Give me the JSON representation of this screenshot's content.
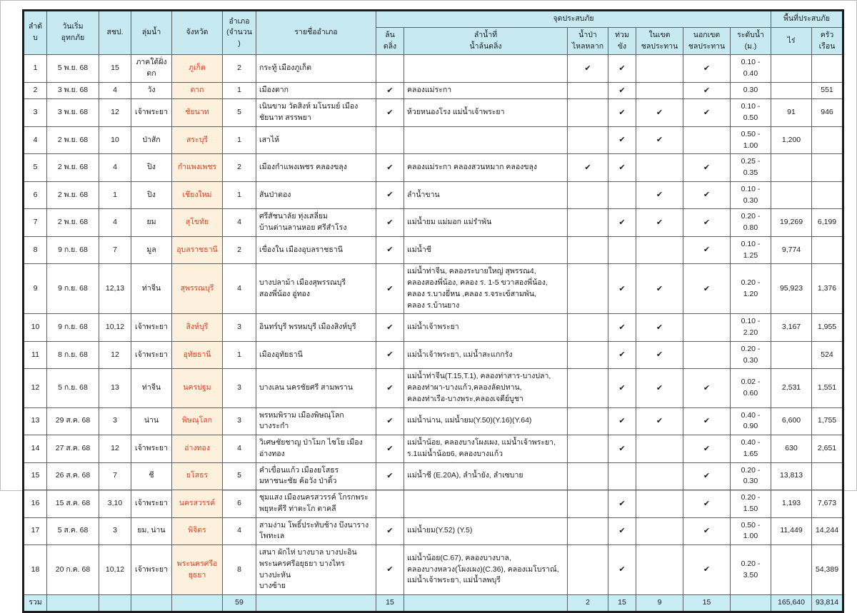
{
  "colors": {
    "header_bg": "#c7e9f2",
    "total_row_bg": "#c9edf5",
    "province_cell_bg": "#fdf0dc",
    "province_text": "#e03c20",
    "border": "#5a5f63"
  },
  "table": {
    "column_keys": [
      "no",
      "date",
      "rid",
      "basin",
      "province",
      "amphoe_count",
      "amphoe_names",
      "overflow",
      "rivers",
      "flash_flood",
      "stagnant",
      "in_irrigation",
      "out_irrigation",
      "water_level",
      "rai",
      "households"
    ],
    "headers": {
      "no": "ลำดับ",
      "date": "วันเริ่ม\nอุทกภัย",
      "rid": "สชป.",
      "basin": "ลุ่มน้ำ",
      "province": "จังหวัด",
      "amphoe_count": "อำเภอ\n(จำนวน)",
      "amphoe_names": "รายชื่ออำเภอ",
      "flood_point_group": "จุดประสบภัย",
      "overflow": "ล้นตลิ่ง",
      "rivers": "ลำน้ำที่\nน้ำล้นตลิ่ง",
      "flash_flood": "น้ำป่า\nไหลหลาก",
      "stagnant": "ท่วมขัง",
      "in_irrigation": "ในเขต\nชลประทาน",
      "out_irrigation": "นอกเขต\nชลประทาน",
      "water_level": "ระดับน้ำ\n(ม.)",
      "area_group": "พื้นที่ประสบภัย",
      "rai": "ไร่",
      "households": "ครัวเรือน"
    },
    "rows": [
      {
        "no": "1",
        "date": "5 พ.ย. 68",
        "rid": "15",
        "basin": "ภาคใต้ฝั่งตก",
        "province": "ภูเก็ต",
        "amphoe_count": "2",
        "amphoe_names": [
          "กระทู้ เมืองภูเก็ต"
        ],
        "overflow": "",
        "rivers": [],
        "flash_flood": "✔",
        "stagnant": "✔",
        "in_irrigation": "",
        "out_irrigation": "✔",
        "water_level": "0.10 - 0.40",
        "rai": "",
        "households": ""
      },
      {
        "no": "2",
        "date": "3 พ.ย. 68",
        "rid": "4",
        "basin": "วัง",
        "province": "ตาก",
        "amphoe_count": "1",
        "amphoe_names": [
          "เมืองตาก"
        ],
        "overflow": "✔",
        "rivers": [
          "คลองแม่ระกา"
        ],
        "flash_flood": "",
        "stagnant": "✔",
        "in_irrigation": "",
        "out_irrigation": "✔",
        "water_level": "0.30",
        "rai": "",
        "households": "551"
      },
      {
        "no": "3",
        "date": "3 พ.ย. 68",
        "rid": "12",
        "basin": "เจ้าพระยา",
        "province": "ชัยนาท",
        "amphoe_count": "5",
        "amphoe_names": [
          "เนินขาม วัดสิงห์ มโนรมย์ เมืองชัยนาท สรรพยา"
        ],
        "overflow": "✔",
        "rivers": [
          "ห้วยหนองโรง แม่น้ำเจ้าพระยา"
        ],
        "flash_flood": "",
        "stagnant": "✔",
        "in_irrigation": "✔",
        "out_irrigation": "✔",
        "water_level": "0.10 - 0.50",
        "rai": "91",
        "households": "946"
      },
      {
        "no": "4",
        "date": "2 พ.ย. 68",
        "rid": "10",
        "basin": "ป่าสัก",
        "province": "สระบุรี",
        "amphoe_count": "1",
        "amphoe_names": [
          "เสาไห้"
        ],
        "overflow": "",
        "rivers": [],
        "flash_flood": "",
        "stagnant": "✔",
        "in_irrigation": "✔",
        "out_irrigation": "",
        "water_level": "0.50 - 1.00",
        "rai": "1,200",
        "households": ""
      },
      {
        "no": "5",
        "date": "2 พ.ย. 68",
        "rid": "4",
        "basin": "ปิง",
        "province": "กำแพงเพชร",
        "amphoe_count": "2",
        "amphoe_names": [
          "เมืองกำแพงเพชร คลองขลุง"
        ],
        "overflow": "✔",
        "rivers": [
          "คลองแม่ระกา คลองสวนหมาก คลองขลุง"
        ],
        "flash_flood": "✔",
        "stagnant": "✔",
        "in_irrigation": "",
        "out_irrigation": "✔",
        "water_level": "0.25 - 0.35",
        "rai": "",
        "households": ""
      },
      {
        "no": "6",
        "date": "2 พ.ย. 68",
        "rid": "1",
        "basin": "ปิง",
        "province": "เชียงใหม่",
        "amphoe_count": "1",
        "amphoe_names": [
          "สันป่าตอง"
        ],
        "overflow": "✔",
        "rivers": [
          "ลำน้ำขาน"
        ],
        "flash_flood": "",
        "stagnant": "",
        "in_irrigation": "✔",
        "out_irrigation": "✔",
        "water_level": "0.10 - 0.30",
        "rai": "",
        "households": ""
      },
      {
        "no": "7",
        "date": "2 พ.ย. 68",
        "rid": "4",
        "basin": "ยม",
        "province": "สุโขทัย",
        "amphoe_count": "4",
        "amphoe_names": [
          "ศรีสัชนาลัย ทุ่งเสลี่ยม",
          "บ้านด่านลานหอย ศรีสำโรง"
        ],
        "overflow": "✔",
        "rivers": [
          "แม่น้ำยม แม่มอก แม่รำพัน"
        ],
        "flash_flood": "",
        "stagnant": "✔",
        "in_irrigation": "✔",
        "out_irrigation": "✔",
        "water_level": "0.20 - 0.80",
        "rai": "19,269",
        "households": "6,199"
      },
      {
        "no": "8",
        "date": "9 ก.ย. 68",
        "rid": "7",
        "basin": "มูล",
        "province": "อุบลราชธานี",
        "amphoe_count": "2",
        "amphoe_names": [
          "เขื่องใน เมืองอุบลราชธานี"
        ],
        "overflow": "✔",
        "rivers": [
          "แม่น้ำชี"
        ],
        "flash_flood": "",
        "stagnant": "",
        "in_irrigation": "",
        "out_irrigation": "✔",
        "water_level": "0.10 - 1.25",
        "rai": "9,774",
        "households": ""
      },
      {
        "no": "9",
        "date": "9 ก.ย. 68",
        "rid": "12,13",
        "basin": "ท่าจีน",
        "province": "สุพรรณบุรี",
        "amphoe_count": "4",
        "amphoe_names": [
          "บางปลาม้า เมืองสุพรรณบุรี",
          "สองพี่น้อง อู่ทอง"
        ],
        "overflow": "✔",
        "rivers": [
          "แม่น้ำท่าจีน, คลองระบายใหญ่ สุพรรณ4,",
          "คลองสองพี่น้อง, คลอง ร. 1-5 ขวาสองพี่น้อง,",
          "คลอง ร.บางยี่หน ,คลอง ร.จระเข้สามพัน,",
          "คลอง ร.บ้านยาง"
        ],
        "flash_flood": "",
        "stagnant": "✔",
        "in_irrigation": "✔",
        "out_irrigation": "✔",
        "water_level": "0.20 - 1.20",
        "rai": "95,923",
        "households": "1,376"
      },
      {
        "no": "10",
        "date": "9 ก.ย. 68",
        "rid": "10,12",
        "basin": "เจ้าพระยา",
        "province": "สิงห์บุรี",
        "amphoe_count": "3",
        "amphoe_names": [
          "อินทร์บุรี พรหมบุรี เมืองสิงห์บุรี"
        ],
        "overflow": "✔",
        "rivers": [
          "แม่น้ำเจ้าพระยา"
        ],
        "flash_flood": "",
        "stagnant": "✔",
        "in_irrigation": "✔",
        "out_irrigation": "",
        "water_level": "0.10 - 2.20",
        "rai": "3,167",
        "households": "1,955"
      },
      {
        "no": "11",
        "date": "8 ก.ย. 68",
        "rid": "12",
        "basin": "เจ้าพระยา",
        "province": "อุทัยธานี",
        "amphoe_count": "1",
        "amphoe_names": [
          "เมืองอุทัยธานี"
        ],
        "overflow": "✔",
        "rivers": [
          "แม่น้ำเจ้าพระยา, แม่น้ำสะแกกรัง"
        ],
        "flash_flood": "",
        "stagnant": "✔",
        "in_irrigation": "✔",
        "out_irrigation": "",
        "water_level": "0.20 - 0.30",
        "rai": "",
        "households": "524"
      },
      {
        "no": "12",
        "date": "5 ก.ย. 68",
        "rid": "13",
        "basin": "ท่าจีน",
        "province": "นครปฐม",
        "amphoe_count": "3",
        "amphoe_names": [
          "บางเลน นครชัยศรี สามพราน"
        ],
        "overflow": "✔",
        "rivers": [
          "แม่น้ำท่าจีน(T.15,T.1), คลองท่าสาร-บางปลา,",
          "คลองท่าผา-บางแก้ว,คลองลัดปทาน,",
          "คลองท่าเรือ-บางพระ,คลองเจดีย์บูชา"
        ],
        "flash_flood": "",
        "stagnant": "✔",
        "in_irrigation": "✔",
        "out_irrigation": "✔",
        "water_level": "0.02 - 0.60",
        "rai": "2,531",
        "households": "1,551"
      },
      {
        "no": "13",
        "date": "29 ส.ค. 68",
        "rid": "3",
        "basin": "น่าน",
        "province": "พิษณุโลก",
        "amphoe_count": "3",
        "amphoe_names": [
          "พรหมพิราม เมืองพิษณุโลก บางระกำ"
        ],
        "overflow": "✔",
        "rivers": [
          "แม่น้ำน่าน, แม่น้ำยม(Y.50)(Y.16)(Y.64)"
        ],
        "flash_flood": "",
        "stagnant": "✔",
        "in_irrigation": "✔",
        "out_irrigation": "✔",
        "water_level": "0.40 - 0.90",
        "rai": "6,600",
        "households": "1,755"
      },
      {
        "no": "14",
        "date": "27 ส.ค. 68",
        "rid": "12",
        "basin": "เจ้าพระยา",
        "province": "อ่างทอง",
        "amphoe_count": "4",
        "amphoe_names": [
          "วิเศษชัยชาญ ป่าโมก ไชโย เมืองอ่างทอง"
        ],
        "overflow": "✔",
        "rivers": [
          "แม่น้ำน้อย, คลองบางโผงเผง, แม่น้ำเจ้าพระยา,",
          "ร.1แม่น้ำน้อย6, คลองบางแก้ว"
        ],
        "flash_flood": "",
        "stagnant": "✔",
        "in_irrigation": "",
        "out_irrigation": "✔",
        "water_level": "0.40 - 1.65",
        "rai": "630",
        "households": "2,651"
      },
      {
        "no": "15",
        "date": "26 ส.ค. 68",
        "rid": "7",
        "basin": "ชี",
        "province": "ยโสธร",
        "amphoe_count": "5",
        "amphoe_names": [
          "คำเขื่อนแก้ว เมืองยโสธร มหาชนะชัย ค้อวัง ป่าติ้ว"
        ],
        "overflow": "✔",
        "rivers": [
          "แม่น้ำชี (E.20A), ลำน้ำยัง, ลำเซบาย"
        ],
        "flash_flood": "",
        "stagnant": "",
        "in_irrigation": "",
        "out_irrigation": "✔",
        "water_level": "0.20 - 0.30",
        "rai": "13,813",
        "households": ""
      },
      {
        "no": "16",
        "date": "15 ส.ค. 68",
        "rid": "3,10",
        "basin": "เจ้าพระยา",
        "province": "นครสวรรค์",
        "amphoe_count": "6",
        "amphoe_names": [
          "ชุมแสง เมืองนครสวรรค์ โกรกพระ",
          "พยุหะคีรี ท่าตะโก ตาคลี"
        ],
        "overflow": "",
        "rivers": [],
        "flash_flood": "",
        "stagnant": "✔",
        "in_irrigation": "",
        "out_irrigation": "✔",
        "water_level": "0.20 - 1.50",
        "rai": "1,193",
        "households": "7,673"
      },
      {
        "no": "17",
        "date": "5 ส.ค. 68",
        "rid": "3",
        "basin": "ยม, น่าน",
        "province": "พิจิตร",
        "amphoe_count": "4",
        "amphoe_names": [
          "สามง่าม โพธิ์ประทับช้าง บึงนาราง โพทะเล"
        ],
        "overflow": "✔",
        "rivers": [
          "แม่น้ำยม(Y.52) (Y.5)"
        ],
        "flash_flood": "",
        "stagnant": "✔",
        "in_irrigation": "",
        "out_irrigation": "✔",
        "water_level": "0.50 - 1.00",
        "rai": "11,449",
        "households": "14,244"
      },
      {
        "no": "18",
        "date": "20 ก.ค. 68",
        "rid": "10,12",
        "basin": "เจ้าพระยา",
        "province": "พระนครศรีอยุธยา",
        "amphoe_count": "8",
        "amphoe_names": [
          "เสนา ผักไห่ บางบาล บางปะอิน",
          "พระนครศรีอยุธยา บางไทร บางปะหัน",
          "บางซ้าย"
        ],
        "overflow": "✔",
        "rivers": [
          "แม่น้ำน้อย(C.67), คลองบางบาล,",
          "คลองบางหลวง(โผงเผง)(C.36), คลองเมโบราณ์,",
          "แม่น้ำเจ้าพระยา, แม่น้ำลพบุรี"
        ],
        "flash_flood": "",
        "stagnant": "✔",
        "in_irrigation": "",
        "out_irrigation": "✔",
        "water_level": "0.20 - 3.50",
        "rai": "",
        "households": "54,389"
      }
    ],
    "total": {
      "no": "รวม",
      "date": "",
      "rid": "",
      "basin": "",
      "province": "",
      "amphoe_count": "59",
      "amphoe_names": [],
      "overflow": "15",
      "rivers": [],
      "flash_flood": "2",
      "stagnant": "15",
      "in_irrigation": "9",
      "out_irrigation": "15",
      "water_level": "",
      "rai": "165,640",
      "households": "93,814"
    }
  }
}
